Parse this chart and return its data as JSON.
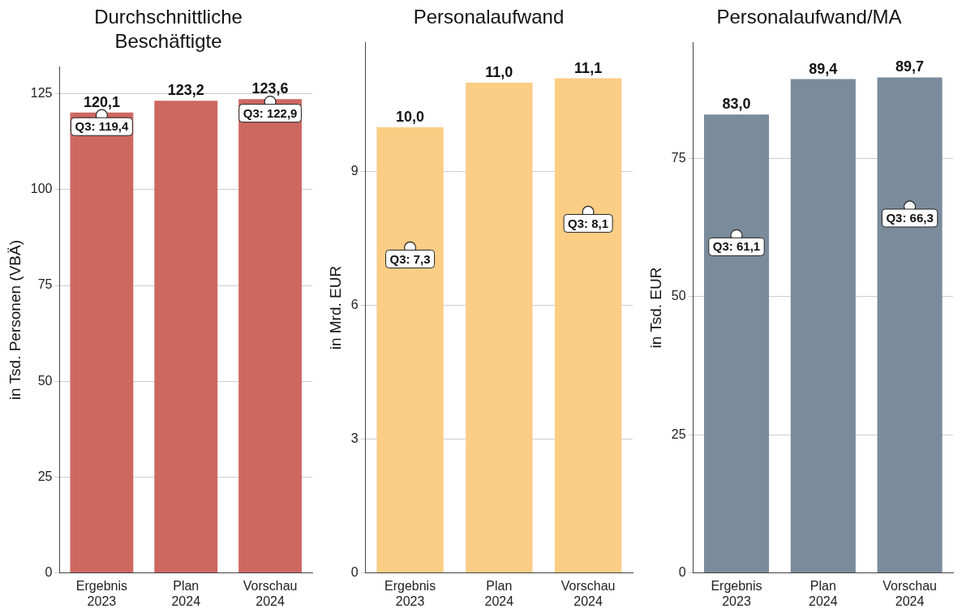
{
  "chart_data": [
    {
      "type": "bar",
      "title": "Durchschnittliche Beschäftigte",
      "ylabel": "in Tsd. Personen (VBÄ)",
      "categories": [
        "Ergebnis 2023",
        "Plan 2024",
        "Vorschau 2024"
      ],
      "ylim": [
        0,
        132
      ],
      "yticks": [
        0,
        25,
        50,
        75,
        100,
        125
      ],
      "grid": "y",
      "legend": false,
      "series": [
        {
          "color": "#cd6861",
          "values": [
            120.1,
            123.2,
            123.6
          ],
          "value_labels": [
            "120,1",
            "123,2",
            "123,6"
          ]
        },
        {
          "type": "scatter",
          "color": "#ffffff",
          "marker": "circle",
          "x": [
            "Ergebnis 2023",
            "Plan 2024",
            "Vorschau 2024"
          ],
          "values": [
            119.4,
            null,
            122.9
          ],
          "value_labels": [
            "Q3: 119,4",
            null,
            "Q3: 122,9"
          ]
        }
      ]
    },
    {
      "type": "bar",
      "title": "Personalaufwand",
      "ylabel": "in Mrd. EUR",
      "categories": [
        "Ergebnis 2023",
        "Plan 2024",
        "Vorschau 2024"
      ],
      "ylim": [
        0,
        11.9
      ],
      "yticks": [
        0,
        3,
        6,
        9
      ],
      "grid": "y",
      "legend": false,
      "series": [
        {
          "color": "#fbcd85",
          "values": [
            10.0,
            11.0,
            11.1
          ],
          "value_labels": [
            "10,0",
            "11,0",
            "11,1"
          ]
        },
        {
          "type": "scatter",
          "color": "#ffffff",
          "marker": "circle",
          "x": [
            "Ergebnis 2023",
            "Plan 2024",
            "Vorschau 2024"
          ],
          "values": [
            7.3,
            null,
            8.1
          ],
          "value_labels": [
            "Q3: 7,3",
            null,
            "Q3: 8,1"
          ]
        }
      ]
    },
    {
      "type": "bar",
      "title": "Personalaufwand/MA",
      "ylabel": "in Tsd. EUR",
      "categories": [
        "Ergebnis 2023",
        "Plan 2024",
        "Vorschau 2024"
      ],
      "ylim": [
        0,
        96
      ],
      "yticks": [
        0,
        25,
        50,
        75
      ],
      "grid": "y",
      "legend": false,
      "series": [
        {
          "color": "#7a8b9c",
          "values": [
            83.0,
            89.4,
            89.7
          ],
          "value_labels": [
            "83,0",
            "89,4",
            "89,7"
          ]
        },
        {
          "type": "scatter",
          "color": "#ffffff",
          "marker": "circle",
          "x": [
            "Ergebnis 2023",
            "Plan 2024",
            "Vorschau 2024"
          ],
          "values": [
            61.1,
            null,
            66.3
          ],
          "value_labels": [
            "Q3: 61,1",
            null,
            "Q3: 66,3"
          ]
        }
      ]
    }
  ]
}
